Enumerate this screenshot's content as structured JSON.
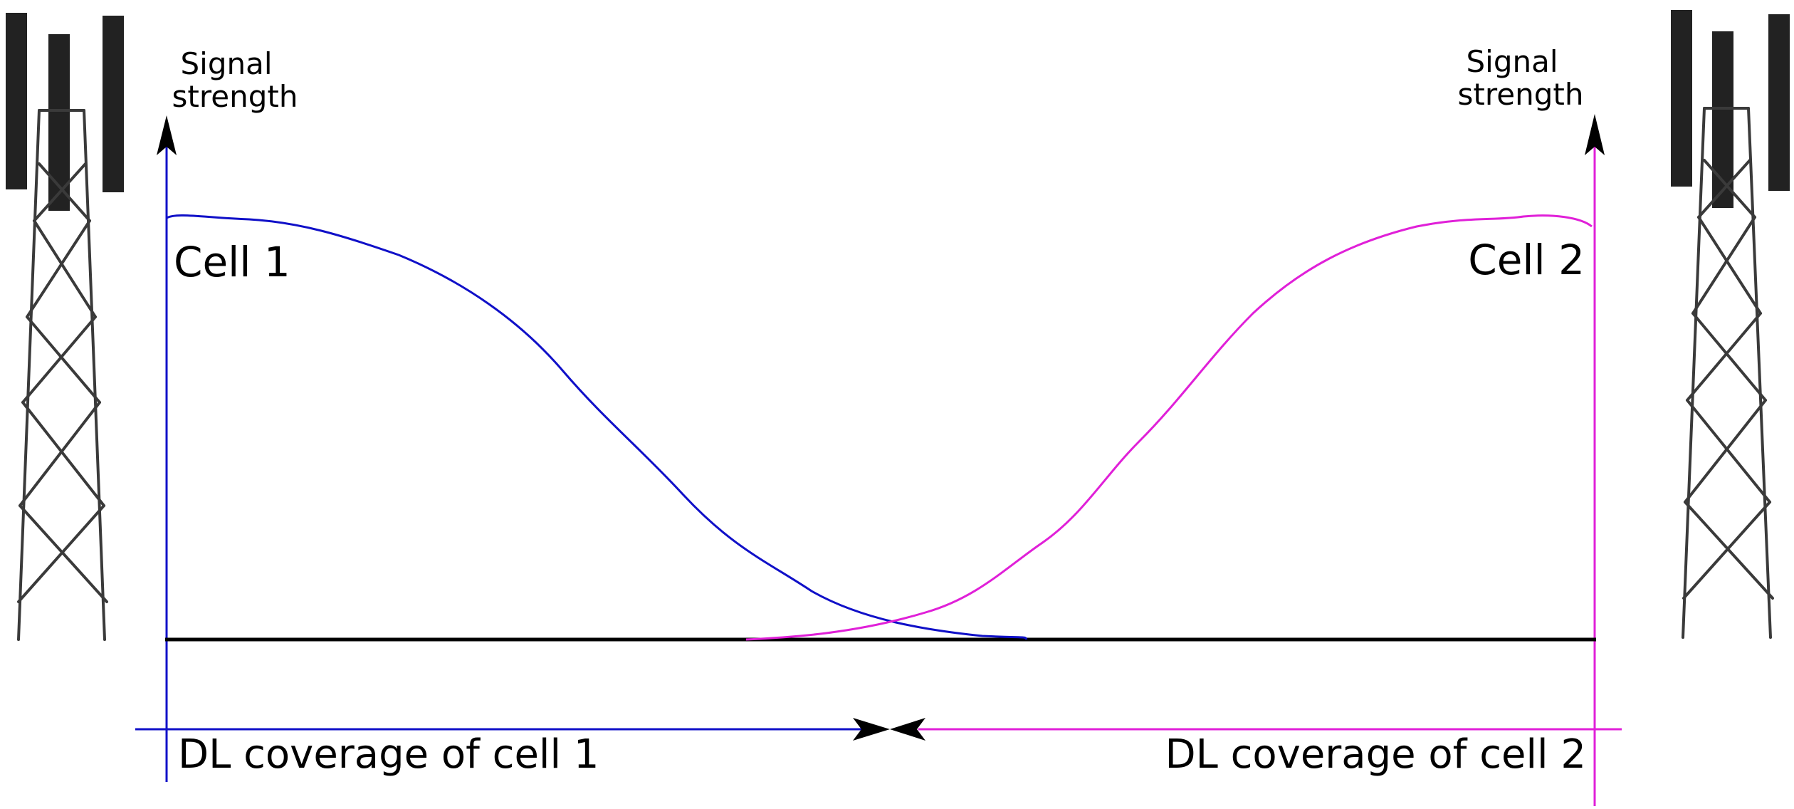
{
  "colors": {
    "cell1": "#1010c8",
    "cell2": "#e020d8",
    "baseline": "#000000",
    "antenna": "#222222",
    "tower": "#3a3a3a"
  },
  "icons": {
    "left_tower": "cell-tower-icon",
    "right_tower": "cell-tower-icon"
  },
  "left_axis": {
    "title_line1": "Signal",
    "title_line2": "strength"
  },
  "right_axis": {
    "title_line1": "Signal",
    "title_line2": "strength"
  },
  "cells": {
    "cell1": {
      "label": "Cell 1",
      "coverage_label": "DL coverage of cell 1"
    },
    "cell2": {
      "label": "Cell 2",
      "coverage_label": "DL coverage of cell 2"
    }
  }
}
